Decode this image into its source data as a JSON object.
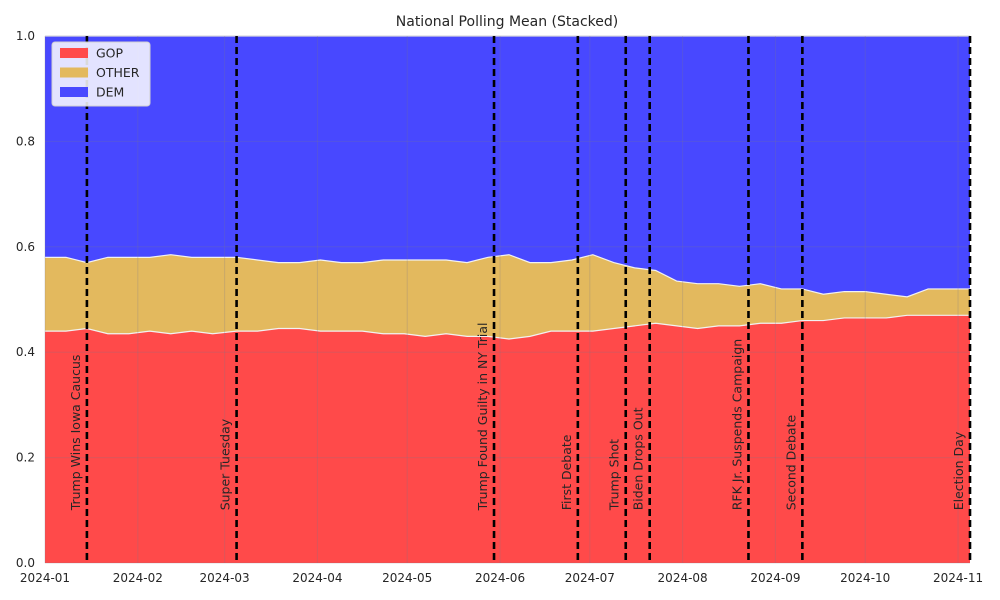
{
  "chart_data": {
    "type": "area",
    "title": "National Polling Mean (Stacked)",
    "xlabel": "",
    "ylabel": "",
    "xlim": [
      "2024-01-01",
      "2024-11-05"
    ],
    "ylim": [
      0,
      1
    ],
    "grid": true,
    "stacked": true,
    "legend_position": "top-left",
    "x_ticks": [
      "2024-01",
      "2024-02",
      "2024-03",
      "2024-04",
      "2024-05",
      "2024-06",
      "2024-07",
      "2024-08",
      "2024-09",
      "2024-10",
      "2024-11"
    ],
    "y_ticks": [
      "0.0",
      "0.2",
      "0.4",
      "0.6",
      "0.8",
      "1.0"
    ],
    "x": [
      "2024-01-01",
      "2024-01-08",
      "2024-01-15",
      "2024-01-22",
      "2024-01-29",
      "2024-02-05",
      "2024-02-12",
      "2024-02-19",
      "2024-02-26",
      "2024-03-05",
      "2024-03-12",
      "2024-03-19",
      "2024-03-26",
      "2024-04-02",
      "2024-04-09",
      "2024-04-16",
      "2024-04-23",
      "2024-04-30",
      "2024-05-07",
      "2024-05-14",
      "2024-05-21",
      "2024-05-28",
      "2024-06-04",
      "2024-06-11",
      "2024-06-18",
      "2024-06-25",
      "2024-07-02",
      "2024-07-09",
      "2024-07-16",
      "2024-07-23",
      "2024-07-30",
      "2024-08-06",
      "2024-08-13",
      "2024-08-20",
      "2024-08-27",
      "2024-09-03",
      "2024-09-10",
      "2024-09-17",
      "2024-09-24",
      "2024-10-01",
      "2024-10-08",
      "2024-10-15",
      "2024-10-22",
      "2024-10-29",
      "2024-11-05"
    ],
    "series": [
      {
        "name": "GOP",
        "color": "#ff4a4a",
        "values": [
          0.44,
          0.44,
          0.445,
          0.435,
          0.435,
          0.44,
          0.435,
          0.44,
          0.435,
          0.44,
          0.44,
          0.445,
          0.445,
          0.44,
          0.44,
          0.44,
          0.435,
          0.435,
          0.43,
          0.435,
          0.43,
          0.43,
          0.425,
          0.43,
          0.44,
          0.44,
          0.44,
          0.445,
          0.45,
          0.455,
          0.45,
          0.445,
          0.45,
          0.45,
          0.455,
          0.455,
          0.46,
          0.46,
          0.465,
          0.465,
          0.465,
          0.47,
          0.47,
          0.47,
          0.47
        ]
      },
      {
        "name": "OTHER",
        "color": "#e3b95e",
        "values": [
          0.14,
          0.14,
          0.125,
          0.145,
          0.145,
          0.14,
          0.15,
          0.14,
          0.145,
          0.14,
          0.135,
          0.125,
          0.125,
          0.135,
          0.13,
          0.13,
          0.14,
          0.14,
          0.145,
          0.14,
          0.14,
          0.15,
          0.16,
          0.14,
          0.13,
          0.135,
          0.145,
          0.125,
          0.11,
          0.1,
          0.085,
          0.085,
          0.08,
          0.075,
          0.075,
          0.065,
          0.06,
          0.05,
          0.05,
          0.05,
          0.045,
          0.035,
          0.05,
          0.05,
          0.05
        ]
      },
      {
        "name": "DEM",
        "color": "#4848ff",
        "values": [
          0.42,
          0.42,
          0.43,
          0.42,
          0.42,
          0.42,
          0.415,
          0.42,
          0.42,
          0.42,
          0.425,
          0.43,
          0.43,
          0.425,
          0.43,
          0.43,
          0.425,
          0.425,
          0.425,
          0.425,
          0.43,
          0.42,
          0.415,
          0.43,
          0.43,
          0.425,
          0.415,
          0.43,
          0.44,
          0.445,
          0.465,
          0.47,
          0.47,
          0.475,
          0.47,
          0.48,
          0.48,
          0.49,
          0.485,
          0.485,
          0.49,
          0.495,
          0.48,
          0.48,
          0.48
        ]
      }
    ],
    "events": [
      {
        "date": "2024-01-15",
        "label": "Trump Wins Iowa Caucus"
      },
      {
        "date": "2024-03-05",
        "label": "Super Tuesday"
      },
      {
        "date": "2024-05-30",
        "label": "Trump Found Guilty in NY Trial"
      },
      {
        "date": "2024-06-27",
        "label": "First Debate"
      },
      {
        "date": "2024-07-13",
        "label": "Trump Shot"
      },
      {
        "date": "2024-07-21",
        "label": "Biden Drops Out"
      },
      {
        "date": "2024-08-23",
        "label": "RFK Jr. Suspends Campaign"
      },
      {
        "date": "2024-09-10",
        "label": "Second Debate"
      },
      {
        "date": "2024-11-05",
        "label": "Election Day"
      }
    ]
  }
}
